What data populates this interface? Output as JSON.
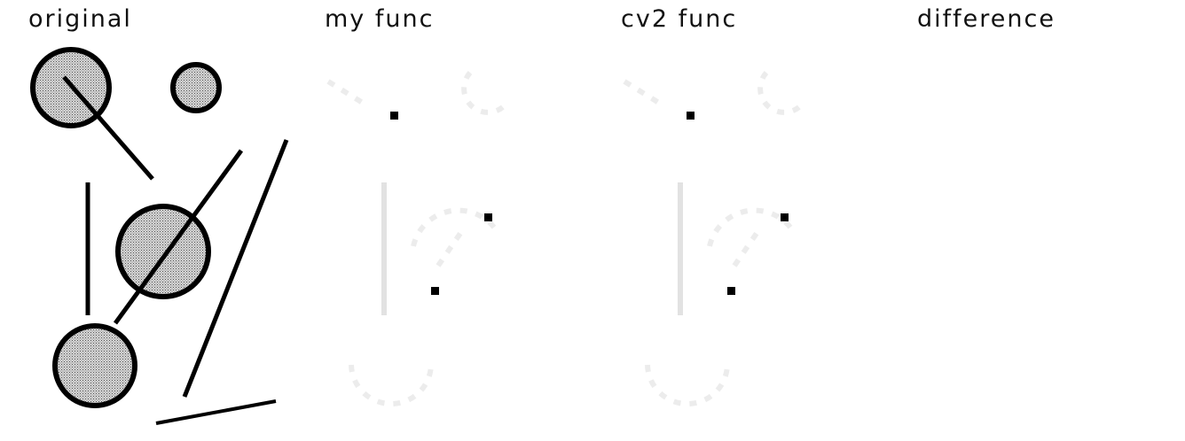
{
  "panels": [
    {
      "title": "original"
    },
    {
      "title": "my func"
    },
    {
      "title": "cv2 func"
    },
    {
      "title": "difference"
    }
  ]
}
